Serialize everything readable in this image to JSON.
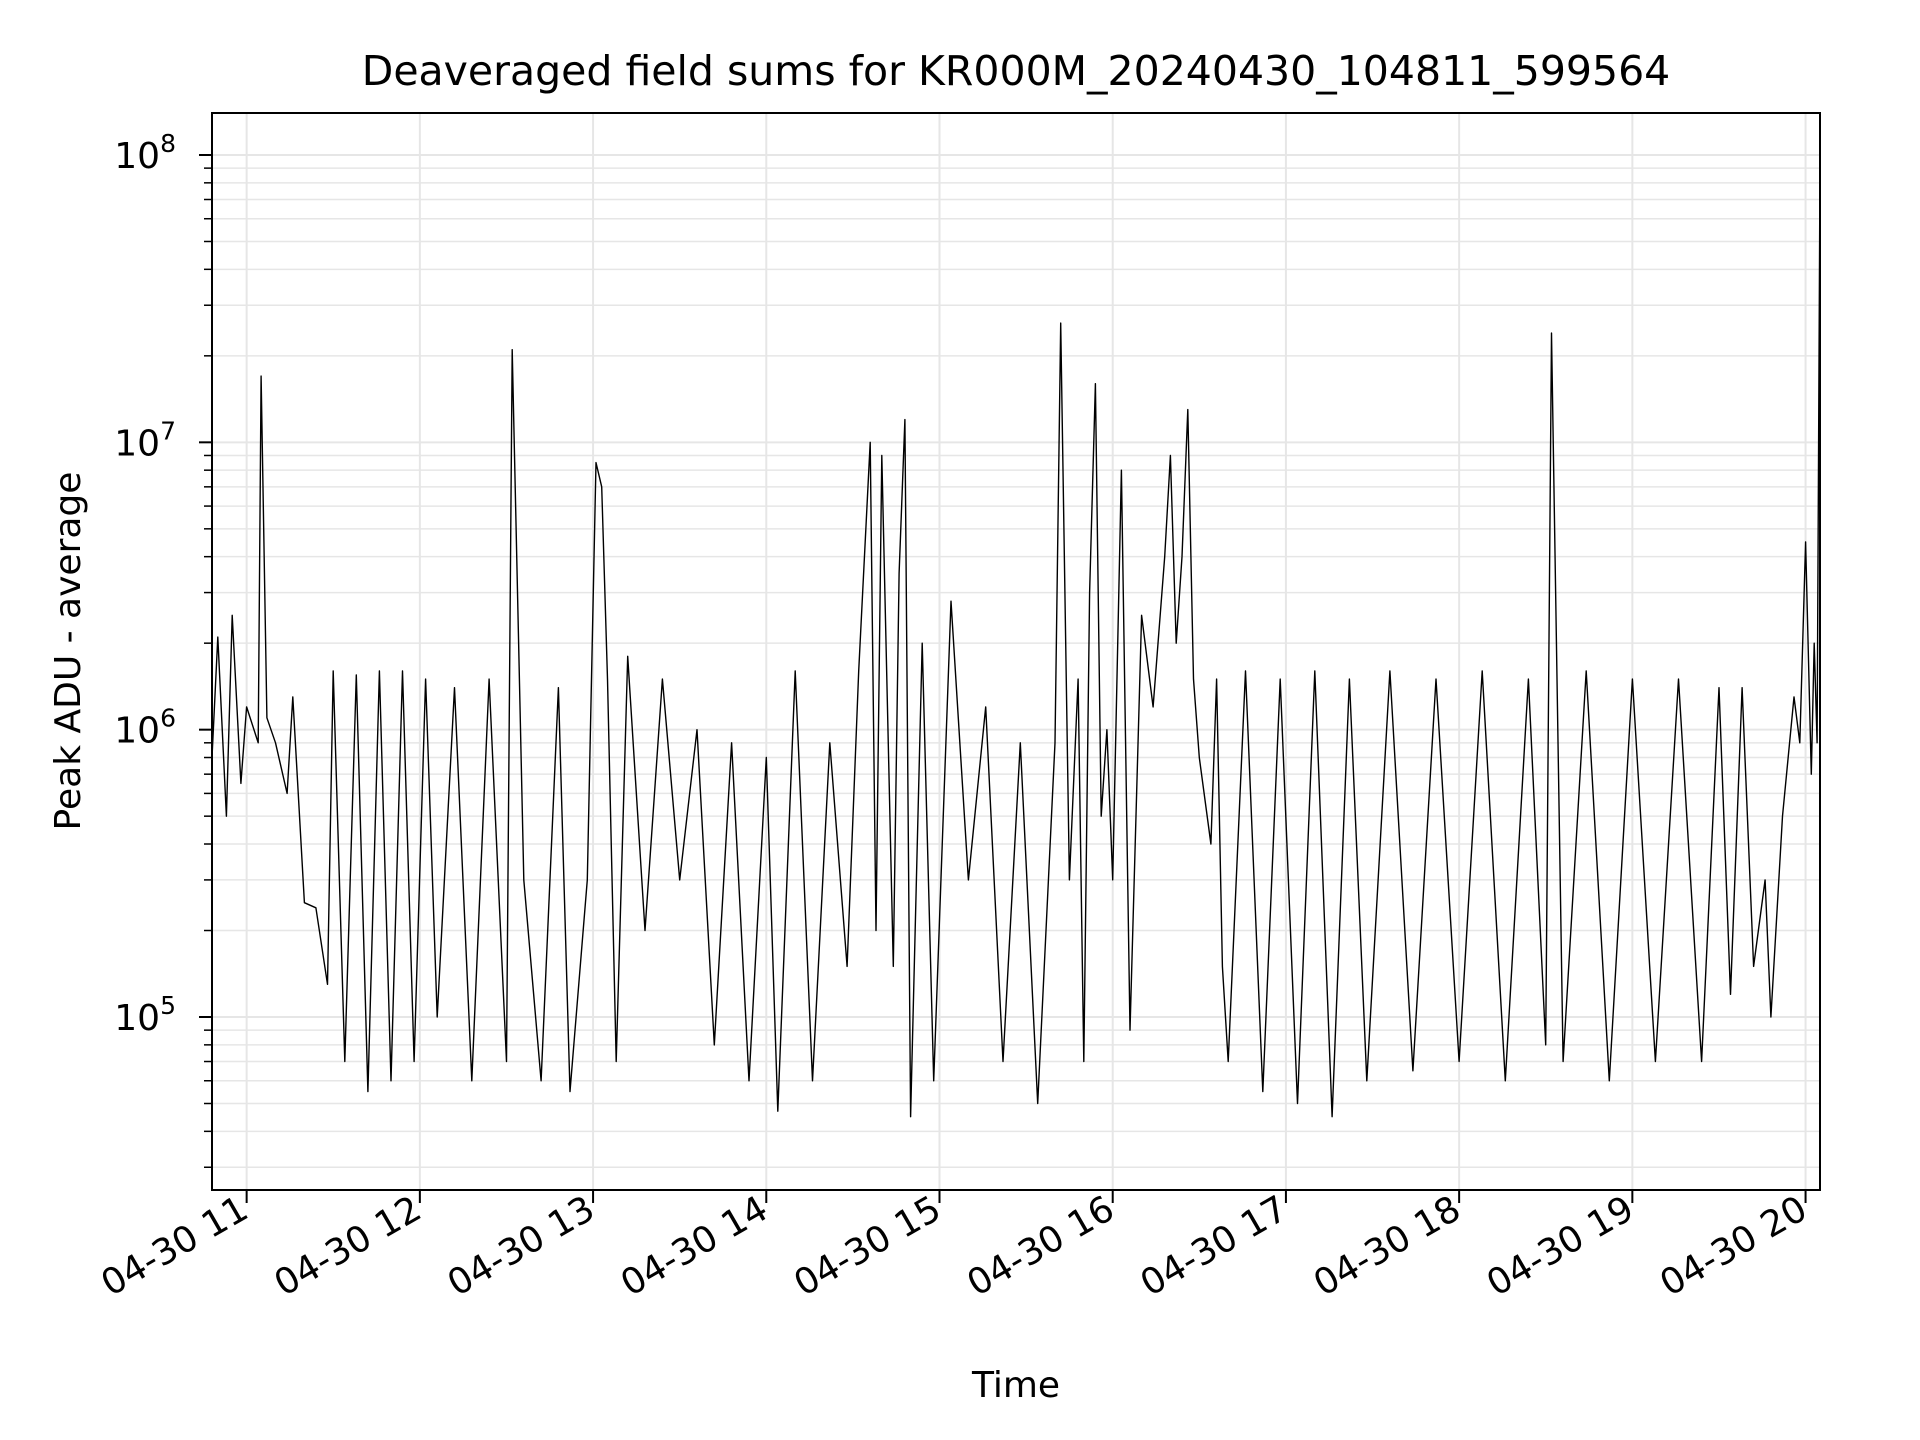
{
  "chart_data": {
    "type": "line",
    "title": "Deaveraged field sums for KR000M_20240430_104811_599564",
    "xlabel": "Time",
    "ylabel": "Peak ADU - average",
    "x_ticks": [
      "04-30 11",
      "04-30 12",
      "04-30 13",
      "04-30 14",
      "04-30 15",
      "04-30 16",
      "04-30 17",
      "04-30 18",
      "04-30 19",
      "04-30 20"
    ],
    "y_ticks": [
      {
        "base": "10",
        "exponent": "5",
        "value": 100000
      },
      {
        "base": "10",
        "exponent": "6",
        "value": 1000000
      },
      {
        "base": "10",
        "exponent": "7",
        "value": 10000000
      },
      {
        "base": "10",
        "exponent": "8",
        "value": 100000000
      }
    ],
    "xlim": [
      "2024-04-30 10:48",
      "2024-04-30 20:05"
    ],
    "ylim": [
      25000,
      140000000
    ],
    "yscale": "log",
    "grid": true,
    "line_color": "#000000",
    "grid_color": "#e6e6e6",
    "series": [
      {
        "values": [
          [
            "2024-04-30 10:48",
            800000
          ],
          [
            "2024-04-30 10:50",
            2100000
          ],
          [
            "2024-04-30 10:53",
            500000
          ],
          [
            "2024-04-30 10:55",
            2500000
          ],
          [
            "2024-04-30 10:58",
            650000
          ],
          [
            "2024-04-30 11:00",
            1200000
          ],
          [
            "2024-04-30 11:04",
            900000
          ],
          [
            "2024-04-30 11:05",
            17000000
          ],
          [
            "2024-04-30 11:07",
            1100000
          ],
          [
            "2024-04-30 11:10",
            900000
          ],
          [
            "2024-04-30 11:14",
            600000
          ],
          [
            "2024-04-30 11:16",
            1300000
          ],
          [
            "2024-04-30 11:20",
            250000
          ],
          [
            "2024-04-30 11:24",
            240000
          ],
          [
            "2024-04-30 11:28",
            130000
          ],
          [
            "2024-04-30 11:30",
            1600000
          ],
          [
            "2024-04-30 11:34",
            70000
          ],
          [
            "2024-04-30 11:38",
            1550000
          ],
          [
            "2024-04-30 11:42",
            55000
          ],
          [
            "2024-04-30 11:46",
            1600000
          ],
          [
            "2024-04-30 11:50",
            60000
          ],
          [
            "2024-04-30 11:54",
            1600000
          ],
          [
            "2024-04-30 11:58",
            70000
          ],
          [
            "2024-04-30 12:02",
            1500000
          ],
          [
            "2024-04-30 12:06",
            100000
          ],
          [
            "2024-04-30 12:12",
            1400000
          ],
          [
            "2024-04-30 12:18",
            60000
          ],
          [
            "2024-04-30 12:24",
            1500000
          ],
          [
            "2024-04-30 12:30",
            70000
          ],
          [
            "2024-04-30 12:32",
            21000000
          ],
          [
            "2024-04-30 12:36",
            300000
          ],
          [
            "2024-04-30 12:42",
            60000
          ],
          [
            "2024-04-30 12:48",
            1400000
          ],
          [
            "2024-04-30 12:52",
            55000
          ],
          [
            "2024-04-30 12:58",
            300000
          ],
          [
            "2024-04-30 13:01",
            8500000
          ],
          [
            "2024-04-30 13:03",
            7000000
          ],
          [
            "2024-04-30 13:05",
            1500000
          ],
          [
            "2024-04-30 13:08",
            70000
          ],
          [
            "2024-04-30 13:12",
            1800000
          ],
          [
            "2024-04-30 13:18",
            200000
          ],
          [
            "2024-04-30 13:24",
            1500000
          ],
          [
            "2024-04-30 13:30",
            300000
          ],
          [
            "2024-04-30 13:36",
            1000000
          ],
          [
            "2024-04-30 13:42",
            80000
          ],
          [
            "2024-04-30 13:48",
            900000
          ],
          [
            "2024-04-30 13:54",
            60000
          ],
          [
            "2024-04-30 14:00",
            800000
          ],
          [
            "2024-04-30 14:04",
            47000
          ],
          [
            "2024-04-30 14:10",
            1600000
          ],
          [
            "2024-04-30 14:16",
            60000
          ],
          [
            "2024-04-30 14:22",
            900000
          ],
          [
            "2024-04-30 14:28",
            150000
          ],
          [
            "2024-04-30 14:32",
            1600000
          ],
          [
            "2024-04-30 14:36",
            10000000
          ],
          [
            "2024-04-30 14:38",
            200000
          ],
          [
            "2024-04-30 14:40",
            9000000
          ],
          [
            "2024-04-30 14:44",
            150000
          ],
          [
            "2024-04-30 14:46",
            3500000
          ],
          [
            "2024-04-30 14:48",
            12000000
          ],
          [
            "2024-04-30 14:50",
            45000
          ],
          [
            "2024-04-30 14:54",
            2000000
          ],
          [
            "2024-04-30 14:58",
            60000
          ],
          [
            "2024-04-30 15:04",
            2800000
          ],
          [
            "2024-04-30 15:10",
            300000
          ],
          [
            "2024-04-30 15:16",
            1200000
          ],
          [
            "2024-04-30 15:22",
            70000
          ],
          [
            "2024-04-30 15:28",
            900000
          ],
          [
            "2024-04-30 15:34",
            50000
          ],
          [
            "2024-04-30 15:40",
            900000
          ],
          [
            "2024-04-30 15:42",
            26000000
          ],
          [
            "2024-04-30 15:45",
            300000
          ],
          [
            "2024-04-30 15:48",
            1500000
          ],
          [
            "2024-04-30 15:50",
            70000
          ],
          [
            "2024-04-30 15:52",
            3000000
          ],
          [
            "2024-04-30 15:54",
            16000000
          ],
          [
            "2024-04-30 15:56",
            500000
          ],
          [
            "2024-04-30 15:58",
            1000000
          ],
          [
            "2024-04-30 16:00",
            300000
          ],
          [
            "2024-04-30 16:03",
            8000000
          ],
          [
            "2024-04-30 16:06",
            90000
          ],
          [
            "2024-04-30 16:10",
            2500000
          ],
          [
            "2024-04-30 16:14",
            1200000
          ],
          [
            "2024-04-30 16:18",
            4000000
          ],
          [
            "2024-04-30 16:20",
            9000000
          ],
          [
            "2024-04-30 16:22",
            2000000
          ],
          [
            "2024-04-30 16:24",
            4000000
          ],
          [
            "2024-04-30 16:26",
            13000000
          ],
          [
            "2024-04-30 16:28",
            1500000
          ],
          [
            "2024-04-30 16:30",
            800000
          ],
          [
            "2024-04-30 16:34",
            400000
          ],
          [
            "2024-04-30 16:36",
            1500000
          ],
          [
            "2024-04-30 16:38",
            150000
          ],
          [
            "2024-04-30 16:40",
            70000
          ],
          [
            "2024-04-30 16:46",
            1600000
          ],
          [
            "2024-04-30 16:52",
            55000
          ],
          [
            "2024-04-30 16:58",
            1500000
          ],
          [
            "2024-04-30 17:04",
            50000
          ],
          [
            "2024-04-30 17:10",
            1600000
          ],
          [
            "2024-04-30 17:16",
            45000
          ],
          [
            "2024-04-30 17:22",
            1500000
          ],
          [
            "2024-04-30 17:28",
            60000
          ],
          [
            "2024-04-30 17:36",
            1600000
          ],
          [
            "2024-04-30 17:44",
            65000
          ],
          [
            "2024-04-30 17:52",
            1500000
          ],
          [
            "2024-04-30 18:00",
            70000
          ],
          [
            "2024-04-30 18:08",
            1600000
          ],
          [
            "2024-04-30 18:16",
            60000
          ],
          [
            "2024-04-30 18:24",
            1500000
          ],
          [
            "2024-04-30 18:30",
            80000
          ],
          [
            "2024-04-30 18:32",
            24000000
          ],
          [
            "2024-04-30 18:36",
            70000
          ],
          [
            "2024-04-30 18:44",
            1600000
          ],
          [
            "2024-04-30 18:52",
            60000
          ],
          [
            "2024-04-30 19:00",
            1500000
          ],
          [
            "2024-04-30 19:08",
            70000
          ],
          [
            "2024-04-30 19:16",
            1500000
          ],
          [
            "2024-04-30 19:24",
            70000
          ],
          [
            "2024-04-30 19:30",
            1400000
          ],
          [
            "2024-04-30 19:34",
            120000
          ],
          [
            "2024-04-30 19:38",
            1400000
          ],
          [
            "2024-04-30 19:42",
            150000
          ],
          [
            "2024-04-30 19:46",
            300000
          ],
          [
            "2024-04-30 19:48",
            100000
          ],
          [
            "2024-04-30 19:52",
            500000
          ],
          [
            "2024-04-30 19:56",
            1300000
          ],
          [
            "2024-04-30 19:58",
            900000
          ],
          [
            "2024-04-30 20:00",
            4500000
          ],
          [
            "2024-04-30 20:02",
            700000
          ],
          [
            "2024-04-30 20:03",
            2000000
          ],
          [
            "2024-04-30 20:04",
            900000
          ],
          [
            "2024-04-30 20:05",
            93000000
          ]
        ]
      }
    ]
  }
}
